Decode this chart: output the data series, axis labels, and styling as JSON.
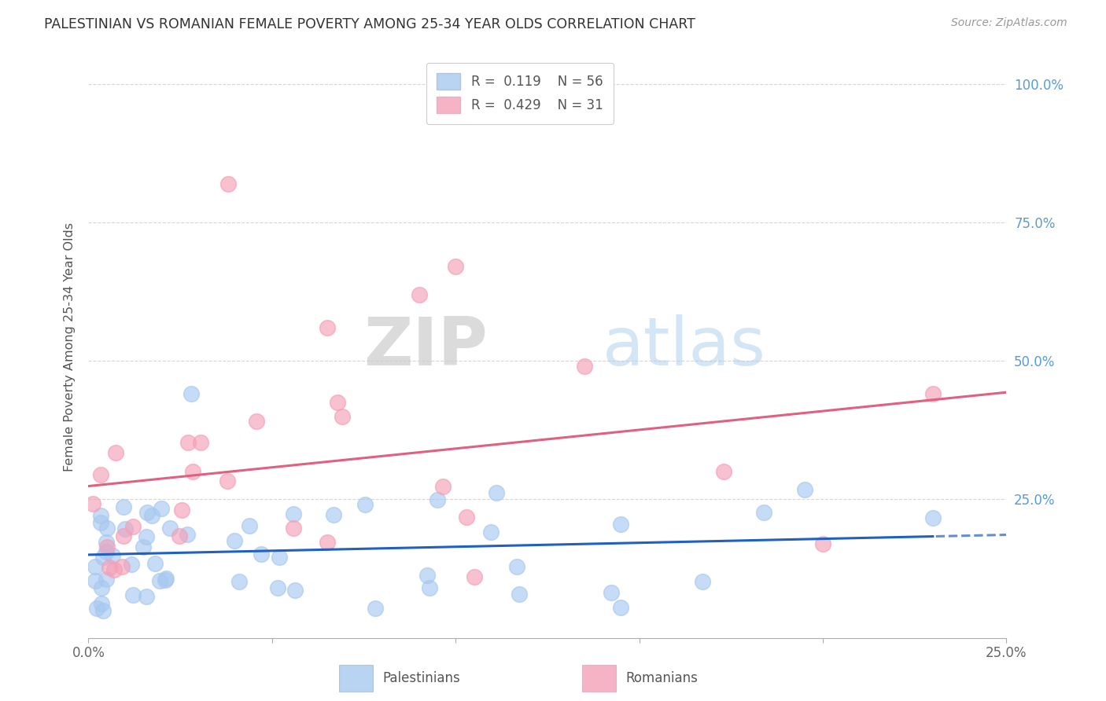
{
  "title": "PALESTINIAN VS ROMANIAN FEMALE POVERTY AMONG 25-34 YEAR OLDS CORRELATION CHART",
  "source": "Source: ZipAtlas.com",
  "ylabel": "Female Poverty Among 25-34 Year Olds",
  "xlim": [
    0.0,
    0.25
  ],
  "ylim": [
    0.0,
    1.05
  ],
  "palestinians_color": "#a8c8f0",
  "romanians_color": "#f4a0b8",
  "regression_blue": "#2060c0",
  "regression_pink": "#e06080",
  "background_color": "#ffffff",
  "grid_color": "#cccccc",
  "title_color": "#333333",
  "right_axis_color": "#5b9bd5",
  "watermark_zip": "ZIP",
  "watermark_atlas": "atlas",
  "legend_R_blue": "0.119",
  "legend_N_blue": "56",
  "legend_R_pink": "0.429",
  "legend_N_pink": "31"
}
